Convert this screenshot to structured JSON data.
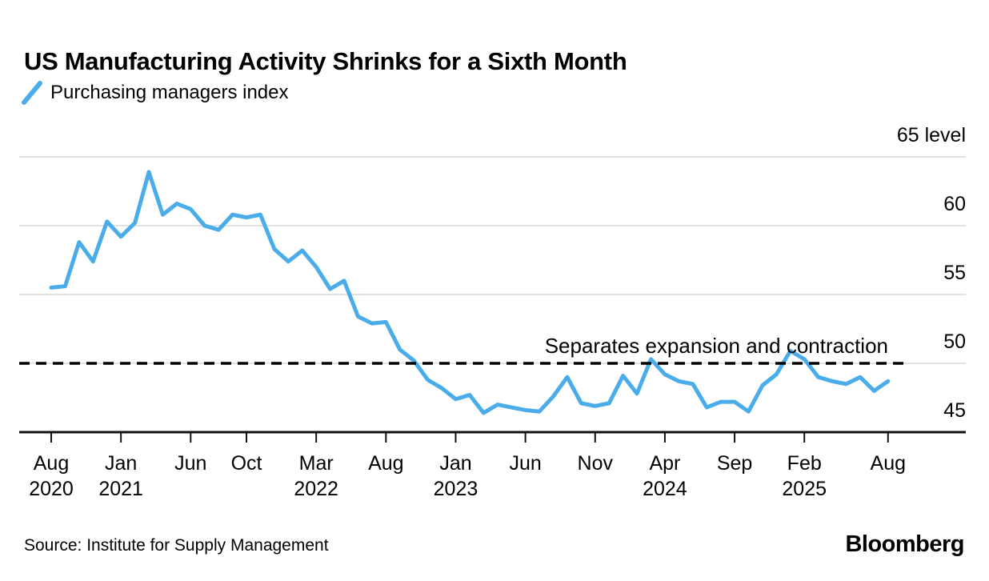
{
  "header": {
    "title": "US Manufacturing Activity Shrinks for a Sixth Month"
  },
  "legend": {
    "label": "Purchasing managers index"
  },
  "annotation": {
    "text": "Separates expansion and contraction"
  },
  "footer": {
    "source": "Source: Institute for Supply Management",
    "brand": "Bloomberg"
  },
  "colors": {
    "line": "#4aade9",
    "grid": "#d8d8d8",
    "axis": "#111111",
    "dashed": "#000000",
    "text": "#000000",
    "background": "#ffffff"
  },
  "chart_data": {
    "type": "line",
    "title": "US Manufacturing Activity Shrinks for a Sixth Month",
    "legend": [
      "Purchasing managers index"
    ],
    "legend_position": "top-left",
    "xlabel": "",
    "ylabel": "level",
    "ylim": [
      45,
      65
    ],
    "grid": "horizontal",
    "x_start": "2020-08",
    "x_end": "2025-08",
    "months": [
      "2020-08",
      "2020-09",
      "2020-10",
      "2020-11",
      "2020-12",
      "2021-01",
      "2021-02",
      "2021-03",
      "2021-04",
      "2021-05",
      "2021-06",
      "2021-07",
      "2021-08",
      "2021-09",
      "2021-10",
      "2021-11",
      "2021-12",
      "2022-01",
      "2022-02",
      "2022-03",
      "2022-04",
      "2022-05",
      "2022-06",
      "2022-07",
      "2022-08",
      "2022-09",
      "2022-10",
      "2022-11",
      "2022-12",
      "2023-01",
      "2023-02",
      "2023-03",
      "2023-04",
      "2023-05",
      "2023-06",
      "2023-07",
      "2023-08",
      "2023-09",
      "2023-10",
      "2023-11",
      "2023-12",
      "2024-01",
      "2024-02",
      "2024-03",
      "2024-04",
      "2024-05",
      "2024-06",
      "2024-07",
      "2024-08",
      "2024-09",
      "2024-10",
      "2024-11",
      "2024-12",
      "2025-01",
      "2025-02",
      "2025-03",
      "2025-04",
      "2025-05",
      "2025-06",
      "2025-07",
      "2025-08"
    ],
    "values": [
      55.5,
      55.6,
      58.8,
      57.4,
      60.3,
      59.2,
      60.2,
      63.9,
      60.8,
      61.6,
      61.2,
      60.0,
      59.7,
      60.8,
      60.6,
      60.8,
      58.3,
      57.4,
      58.2,
      57.0,
      55.4,
      56.0,
      53.4,
      52.9,
      53.0,
      51.0,
      50.2,
      48.8,
      48.2,
      47.4,
      47.7,
      46.4,
      47.0,
      46.8,
      46.6,
      46.5,
      47.6,
      49.0,
      47.1,
      46.9,
      47.1,
      49.1,
      47.8,
      50.3,
      49.2,
      48.7,
      48.5,
      46.8,
      47.2,
      47.2,
      46.5,
      48.4,
      49.2,
      50.9,
      50.3,
      49.0,
      48.7,
      48.5,
      49.0,
      48.0,
      48.7
    ],
    "yticks": [
      {
        "value": 45,
        "label": "45"
      },
      {
        "value": 50,
        "label": "50"
      },
      {
        "value": 55,
        "label": "55"
      },
      {
        "value": 60,
        "label": "60"
      },
      {
        "value": 65,
        "label": "65 level"
      }
    ],
    "xticks": [
      {
        "month_index": 0,
        "label": "Aug",
        "year": "2020"
      },
      {
        "month_index": 5,
        "label": "Jan",
        "year": "2021"
      },
      {
        "month_index": 10,
        "label": "Jun"
      },
      {
        "month_index": 14,
        "label": "Oct"
      },
      {
        "month_index": 19,
        "label": "Mar",
        "year": "2022"
      },
      {
        "month_index": 24,
        "label": "Aug"
      },
      {
        "month_index": 29,
        "label": "Jan",
        "year": "2023"
      },
      {
        "month_index": 34,
        "label": "Jun"
      },
      {
        "month_index": 39,
        "label": "Nov"
      },
      {
        "month_index": 44,
        "label": "Apr",
        "year": "2024"
      },
      {
        "month_index": 49,
        "label": "Sep"
      },
      {
        "month_index": 54,
        "label": "Feb",
        "year": "2025"
      },
      {
        "month_index": 60,
        "label": "Aug"
      }
    ],
    "reference_line": {
      "value": 50,
      "style": "dashed",
      "label": "Separates expansion and contraction"
    }
  }
}
